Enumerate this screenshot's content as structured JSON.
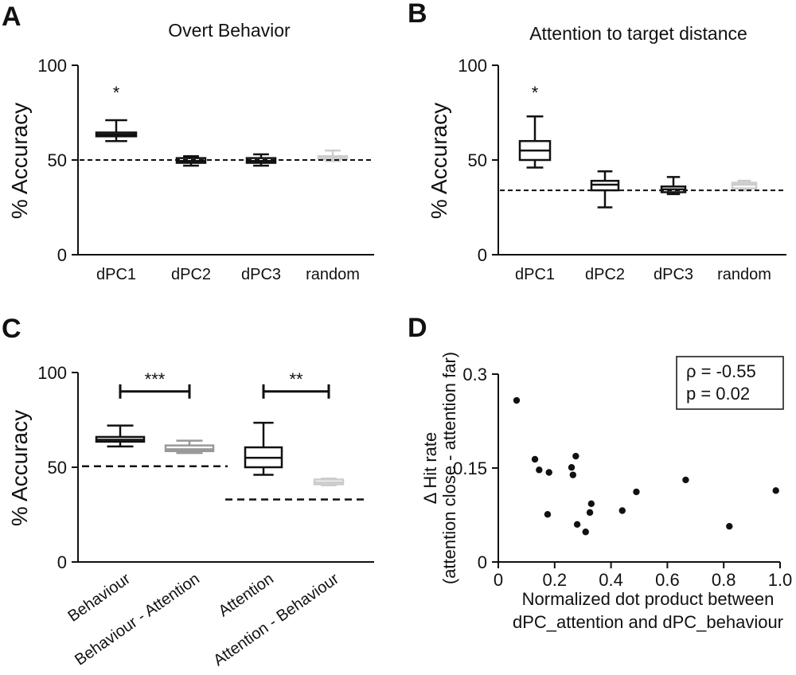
{
  "chart_data": [
    {
      "panel": "A",
      "type": "box",
      "title": "Overt Behavior",
      "ylabel": "% Accuracy",
      "ylim": [
        0,
        100
      ],
      "yticks": [
        0,
        50,
        100
      ],
      "categories": [
        "dPC1",
        "dPC2",
        "dPC3",
        "random"
      ],
      "boxes": [
        {
          "label": "dPC1",
          "min": 60,
          "q1": 62.5,
          "median": 63.5,
          "q3": 64.5,
          "max": 71,
          "color": "#111111"
        },
        {
          "label": "dPC2",
          "min": 47,
          "q1": 48.5,
          "median": 49.5,
          "q3": 51,
          "max": 52,
          "color": "#111111"
        },
        {
          "label": "dPC3",
          "min": 47,
          "q1": 48.5,
          "median": 49.5,
          "q3": 51,
          "max": 53,
          "color": "#111111"
        },
        {
          "label": "random",
          "min": 49.5,
          "q1": 50.5,
          "median": 51.5,
          "q3": 52,
          "max": 55,
          "color": "#cccccc"
        }
      ],
      "chance_line": 50,
      "annotations": [
        {
          "category": "dPC1",
          "text": "*",
          "y": 90
        }
      ]
    },
    {
      "panel": "B",
      "type": "box",
      "title": "Attention to target  distance",
      "ylabel": "% Accuracy",
      "ylim": [
        0,
        100
      ],
      "yticks": [
        0,
        50,
        100
      ],
      "categories": [
        "dPC1",
        "dPC2",
        "dPC3",
        "random"
      ],
      "boxes": [
        {
          "label": "dPC1",
          "min": 46,
          "q1": 50,
          "median": 55,
          "q3": 60,
          "max": 73,
          "color": "#111111"
        },
        {
          "label": "dPC2",
          "min": 25,
          "q1": 34,
          "median": 37,
          "q3": 39,
          "max": 44,
          "color": "#111111"
        },
        {
          "label": "dPC3",
          "min": 32,
          "q1": 33,
          "median": 34.5,
          "q3": 36,
          "max": 41,
          "color": "#111111"
        },
        {
          "label": "random",
          "min": 34,
          "q1": 35,
          "median": 37,
          "q3": 38,
          "max": 39,
          "color": "#cccccc"
        }
      ],
      "chance_line": 34,
      "annotations": [
        {
          "category": "dPC1",
          "text": "*",
          "y": 90
        }
      ]
    },
    {
      "panel": "C",
      "type": "box",
      "title": "",
      "ylabel": "% Accuracy",
      "ylim": [
        0,
        100
      ],
      "yticks": [
        0,
        50,
        100
      ],
      "categories": [
        "Behaviour",
        "Behaviour - Attention",
        "Attention",
        "Attention - Behaviour"
      ],
      "boxes": [
        {
          "label": "Behaviour",
          "min": 61,
          "q1": 63.5,
          "median": 64.5,
          "q3": 66,
          "max": 72,
          "color": "#111111"
        },
        {
          "label": "Behaviour - Attention",
          "min": 57.5,
          "q1": 58.5,
          "median": 59.5,
          "q3": 61.5,
          "max": 64,
          "color": "#999999"
        },
        {
          "label": "Attention",
          "min": 46,
          "q1": 50,
          "median": 55,
          "q3": 60.5,
          "max": 73.5,
          "color": "#111111"
        },
        {
          "label": "Attention - Behaviour",
          "min": 40.5,
          "q1": 41,
          "median": 42,
          "q3": 43.5,
          "max": 44,
          "color": "#cccccc"
        }
      ],
      "chance_lines": [
        {
          "from": "Behaviour",
          "to": "Behaviour - Attention",
          "y": 50.5
        },
        {
          "from": "Attention",
          "to": "Attention - Behaviour",
          "y": 33
        }
      ],
      "brackets": [
        {
          "from": "Behaviour",
          "to": "Behaviour - Attention",
          "y": 90,
          "text": "***"
        },
        {
          "from": "Attention",
          "to": "Attention - Behaviour",
          "y": 90,
          "text": "**"
        }
      ]
    },
    {
      "panel": "D",
      "type": "scatter",
      "title": "",
      "xlabel_lines": [
        "Normalized dot product between",
        "dPC_attention and dPC_behaviour"
      ],
      "ylabel_lines": [
        "Δ Hit  rate",
        "(attention close - attention far)"
      ],
      "xlim": [
        0,
        1.0
      ],
      "ylim": [
        0,
        0.3
      ],
      "xticks": [
        0,
        0.2,
        0.4,
        0.6,
        0.8,
        1.0
      ],
      "xtick_labels": [
        "0",
        "0.2",
        "0.4",
        "0.6",
        "0.8",
        "1.0"
      ],
      "yticks": [
        0,
        0.15,
        0.3
      ],
      "ytick_labels": [
        "0",
        "0.15",
        "0.3"
      ],
      "points": [
        [
          0.065,
          0.258
        ],
        [
          0.13,
          0.164
        ],
        [
          0.145,
          0.147
        ],
        [
          0.18,
          0.143
        ],
        [
          0.175,
          0.076
        ],
        [
          0.26,
          0.151
        ],
        [
          0.265,
          0.139
        ],
        [
          0.275,
          0.169
        ],
        [
          0.28,
          0.06
        ],
        [
          0.31,
          0.048
        ],
        [
          0.325,
          0.079
        ],
        [
          0.33,
          0.093
        ],
        [
          0.44,
          0.082
        ],
        [
          0.49,
          0.112
        ],
        [
          0.665,
          0.131
        ],
        [
          0.82,
          0.057
        ],
        [
          0.985,
          0.114
        ]
      ],
      "legend_lines": [
        "ρ = -0.55",
        "p = 0.02"
      ]
    }
  ]
}
